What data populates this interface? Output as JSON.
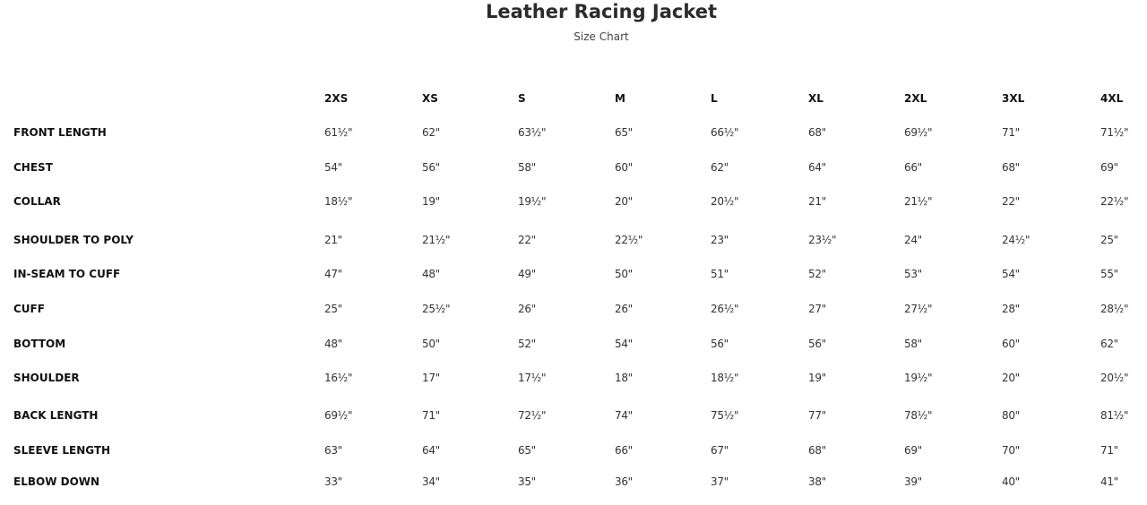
{
  "header": {
    "title": "Leather Racing Jacket",
    "subtitle": "Size Chart"
  },
  "table": {
    "sizes": [
      "2XS",
      "XS",
      "S",
      "M",
      "L",
      "XL",
      "2XL",
      "3XL",
      "4XL"
    ],
    "rows": [
      {
        "label": "FRONT LENGTH",
        "values": [
          "61½\"",
          "62\"",
          "63½\"",
          "65\"",
          "66½\"",
          "68\"",
          "69½\"",
          "71\"",
          "71½\""
        ]
      },
      {
        "label": "CHEST",
        "values": [
          "54\"",
          "56\"",
          "58\"",
          "60\"",
          "62\"",
          "64\"",
          "66\"",
          "68\"",
          "69\""
        ]
      },
      {
        "label": "COLLAR",
        "values": [
          "18½\"",
          "19\"",
          "19½\"",
          "20\"",
          "20½\"",
          "21\"",
          "21½\"",
          "22\"",
          "22½\""
        ]
      },
      {
        "label": "SHOULDER TO POLY",
        "values": [
          "21\"",
          "21½\"",
          "22\"",
          "22½\"",
          "23\"",
          "23½\"",
          "24\"",
          "24½\"",
          "25\""
        ]
      },
      {
        "label": "IN-SEAM TO CUFF",
        "values": [
          "47\"",
          "48\"",
          "49\"",
          "50\"",
          "51\"",
          "52\"",
          "53\"",
          "54\"",
          "55\""
        ]
      },
      {
        "label": "CUFF",
        "values": [
          "25\"",
          "25½\"",
          "26\"",
          "26\"",
          "26½\"",
          "27\"",
          "27½\"",
          "28\"",
          "28½\""
        ]
      },
      {
        "label": "BOTTOM",
        "values": [
          "48\"",
          "50\"",
          "52\"",
          "54\"",
          "56\"",
          "56\"",
          "58\"",
          "60\"",
          "62\""
        ]
      },
      {
        "label": "SHOULDER",
        "values": [
          "16½\"",
          "17\"",
          "17½\"",
          "18\"",
          "18½\"",
          "19\"",
          "19½\"",
          "20\"",
          "20½\""
        ]
      },
      {
        "label": "BACK LENGTH",
        "values": [
          "69½\"",
          "71\"",
          "72½\"",
          "74\"",
          "75½\"",
          "77\"",
          "78½\"",
          "80\"",
          "81½\""
        ]
      },
      {
        "label": "SLEEVE LENGTH",
        "values": [
          "63\"",
          "64\"",
          "65\"",
          "66\"",
          "67\"",
          "68\"",
          "69\"",
          "70\"",
          "71\""
        ]
      },
      {
        "label": "ELBOW DOWN",
        "values": [
          "33\"",
          "34\"",
          "35\"",
          "36\"",
          "37\"",
          "38\"",
          "39\"",
          "40\"",
          "41\""
        ]
      }
    ]
  }
}
